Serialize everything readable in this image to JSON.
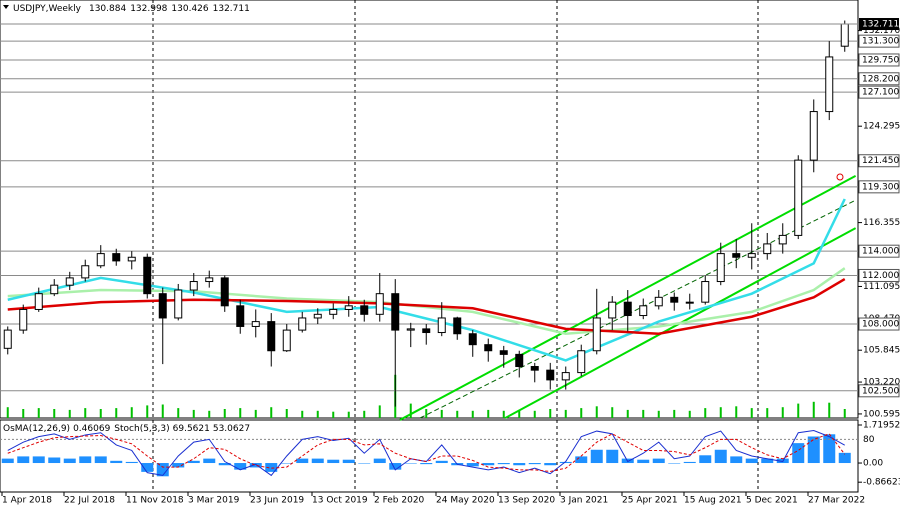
{
  "chart_data": {
    "type": "candlestick",
    "symbol": "USDJPY,Weekly",
    "dates": [
      "1 Apr 2018",
      "22 Jul 2018",
      "11 Nov 2018",
      "3 Mar 2019",
      "23 Jun 2019",
      "13 Oct 2019",
      "2 Feb 2020",
      "24 May 2020",
      "13 Sep 2020",
      "3 Jan 2021",
      "25 Apr 2021",
      "15 Aug 2021",
      "5 Dec 2021",
      "27 Mar 2022"
    ],
    "open": [
      106.0,
      107.5,
      109.2,
      110.5,
      111.2,
      111.8,
      112.8,
      113.8,
      113.2,
      113.5,
      110.5,
      108.5,
      110.8,
      111.5,
      111.8,
      109.5,
      107.8,
      108.2,
      105.8,
      107.5,
      108.5,
      108.8,
      109.2,
      109.5,
      108.8,
      110.5,
      107.5,
      107.6,
      107.3,
      108.5,
      107.2,
      106.3,
      105.8,
      105.5,
      104.5,
      104.2,
      103.4,
      104.0,
      105.8,
      108.5,
      109.8,
      108.7,
      109.5,
      110.2,
      109.8,
      109.8,
      111.5,
      113.8,
      113.5,
      113.8,
      114.6,
      115.3,
      121.5,
      125.5,
      130.884
    ],
    "high": [
      107.8,
      109.6,
      111.0,
      111.7,
      112.3,
      113.3,
      114.5,
      114.2,
      114.0,
      113.8,
      111.0,
      111.3,
      112.2,
      112.4,
      112.0,
      110.0,
      109.2,
      108.9,
      108.0,
      109.0,
      109.3,
      109.7,
      110.3,
      110.0,
      112.2,
      111.7,
      108.1,
      108.0,
      109.8,
      108.6,
      107.5,
      106.8,
      106.2,
      105.8,
      104.8,
      104.8,
      104.5,
      106.3,
      110.9,
      110.3,
      110.8,
      110.1,
      110.8,
      110.6,
      110.5,
      112.0,
      114.7,
      115.0,
      116.3,
      115.5,
      116.3,
      121.9,
      126.5,
      131.3,
      132.998
    ],
    "low": [
      105.5,
      107.2,
      109.0,
      110.3,
      110.8,
      111.5,
      112.6,
      112.8,
      112.5,
      110.1,
      104.7,
      108.3,
      110.3,
      111.0,
      109.0,
      107.2,
      106.9,
      104.5,
      105.7,
      107.3,
      108.0,
      108.4,
      108.6,
      108.2,
      108.2,
      101.2,
      106.1,
      106.3,
      107.0,
      106.7,
      105.3,
      104.9,
      104.4,
      103.6,
      103.2,
      102.6,
      102.6,
      103.7,
      105.5,
      107.5,
      107.4,
      108.4,
      109.2,
      109.1,
      109.2,
      109.6,
      111.2,
      112.6,
      112.5,
      113.3,
      113.8,
      115.0,
      120.5,
      124.8,
      130.426
    ],
    "close": [
      107.5,
      109.2,
      110.5,
      111.2,
      111.8,
      112.8,
      113.8,
      113.2,
      113.5,
      110.5,
      108.5,
      110.8,
      111.5,
      111.8,
      109.5,
      107.8,
      108.2,
      105.8,
      107.5,
      108.5,
      108.8,
      109.2,
      109.5,
      108.8,
      110.5,
      107.5,
      107.6,
      107.3,
      108.5,
      107.2,
      106.3,
      105.8,
      105.5,
      104.5,
      104.2,
      103.4,
      104.0,
      105.8,
      108.5,
      109.8,
      108.7,
      109.5,
      110.2,
      109.8,
      109.8,
      111.5,
      113.8,
      113.5,
      113.8,
      114.6,
      115.3,
      121.5,
      125.5,
      130.0,
      132.711
    ],
    "volume": [
      12,
      10,
      11,
      10,
      9,
      11,
      10,
      11,
      12,
      14,
      15,
      11,
      9,
      8,
      10,
      11,
      9,
      12,
      10,
      8,
      8,
      7,
      7,
      8,
      14,
      48,
      16,
      10,
      9,
      8,
      8,
      9,
      8,
      9,
      8,
      10,
      9,
      11,
      13,
      12,
      9,
      9,
      8,
      9,
      8,
      11,
      12,
      13,
      11,
      11,
      12,
      16,
      18,
      17,
      10
    ],
    "volume_color": "#00c000",
    "ylim": [
      100.26,
      134.36
    ],
    "yticks": [
      100.595,
      {
        "value": 103.22,
        "label": "103.220"
      },
      105.845,
      {
        "value": 108.47,
        "label": "108.470"
      },
      111.095,
      116.355,
      124.295,
      {
        "value": 132.17,
        "label": "132.170"
      }
    ],
    "levels": [
      {
        "value": 131.3,
        "label": "131.300"
      },
      {
        "value": 129.75,
        "label": "129.750"
      },
      {
        "value": 128.2,
        "label": "128.200"
      },
      {
        "value": 127.1,
        "label": "127.100"
      },
      {
        "value": 121.45,
        "label": "121.450"
      },
      {
        "value": 119.3,
        "label": "119.300"
      },
      {
        "value": 114,
        "label": "114.000"
      },
      {
        "value": 112,
        "label": "112.000"
      },
      {
        "value": 108,
        "label": "108.000"
      },
      {
        "value": 102.5,
        "label": "102.500"
      }
    ],
    "ma_x": [
      0,
      6,
      12,
      18,
      24,
      30,
      36,
      42,
      48,
      52,
      54
    ],
    "moving_averages": [
      {
        "color": "#aaf0aa",
        "values": [
          110.3,
          110.8,
          110.7,
          110.1,
          109.8,
          109.0,
          107.2,
          107.8,
          109.0,
          110.8,
          112.6
        ]
      },
      {
        "color": "#33dde8",
        "values": [
          110.0,
          111.8,
          110.6,
          109.0,
          109.4,
          107.5,
          105.0,
          108.2,
          110.5,
          113.0,
          118.3
        ]
      },
      {
        "color": "#dd0000",
        "values": [
          109.2,
          109.8,
          110.0,
          109.9,
          109.7,
          109.3,
          107.6,
          107.2,
          108.6,
          110.2,
          111.7
        ]
      }
    ],
    "channel": [
      {
        "color": "#00dd00",
        "dash": false,
        "x": [
          25.3,
          54.7
        ],
        "values": [
          100.1,
          120.2
        ]
      },
      {
        "color": "#006400",
        "dash": true,
        "x": [
          26.6,
          54.7
        ],
        "values": [
          100.26,
          118.2
        ]
      },
      {
        "color": "#00dd00",
        "dash": false,
        "x": [
          32.1,
          54.7
        ],
        "values": [
          100.26,
          115.9
        ]
      }
    ],
    "indicator": {
      "osma_name": "OsMA(12,26,9)",
      "osma_color": "#1e90ff",
      "osma": [
        0.2,
        0.3,
        0.3,
        0.25,
        0.2,
        0.3,
        0.3,
        0.1,
        0.05,
        -0.4,
        -0.6,
        -0.2,
        0.1,
        0.2,
        -0.1,
        -0.3,
        -0.2,
        -0.4,
        0.0,
        0.2,
        0.2,
        0.15,
        0.15,
        0.0,
        0.2,
        -0.3,
        0.0,
        -0.05,
        0.1,
        -0.1,
        -0.15,
        -0.1,
        -0.05,
        -0.1,
        -0.05,
        -0.1,
        0.05,
        0.3,
        0.6,
        0.6,
        0.2,
        0.15,
        0.2,
        0.0,
        0.05,
        0.35,
        0.6,
        0.3,
        0.2,
        0.2,
        0.2,
        0.9,
        1.2,
        1.3,
        0.46069
      ],
      "ylim": [
        -1.31,
        1.946
      ],
      "yticks": [
        1.71952,
        {
          "value": 0,
          "label": "0.00"
        },
        -0.86623
      ],
      "stoch_name": "Stoch(5,3,3)",
      "stoch_main_color": "#1a2fd0",
      "stoch_signal_color": "#e00000",
      "stoch_main": [
        60,
        75,
        85,
        90,
        80,
        88,
        92,
        70,
        60,
        20,
        15,
        50,
        75,
        80,
        40,
        25,
        35,
        15,
        50,
        80,
        85,
        78,
        82,
        55,
        80,
        25,
        45,
        40,
        70,
        35,
        30,
        25,
        30,
        20,
        28,
        18,
        40,
        85,
        95,
        90,
        40,
        55,
        75,
        45,
        50,
        85,
        95,
        60,
        50,
        45,
        40,
        92,
        96,
        85,
        69.5621
      ],
      "stoch_signal": [
        55,
        65,
        75,
        83,
        85,
        86,
        87,
        80,
        72,
        50,
        30,
        30,
        45,
        65,
        62,
        45,
        33,
        28,
        30,
        50,
        70,
        80,
        80,
        70,
        72,
        55,
        45,
        40,
        50,
        50,
        42,
        30,
        28,
        25,
        25,
        22,
        28,
        50,
        75,
        90,
        75,
        60,
        60,
        58,
        52,
        65,
        80,
        80,
        65,
        52,
        45,
        60,
        80,
        90,
        53.0627
      ],
      "stoch_ylim": [
        -15,
        115
      ],
      "stoch_yticks": [
        80
      ]
    }
  }
}
